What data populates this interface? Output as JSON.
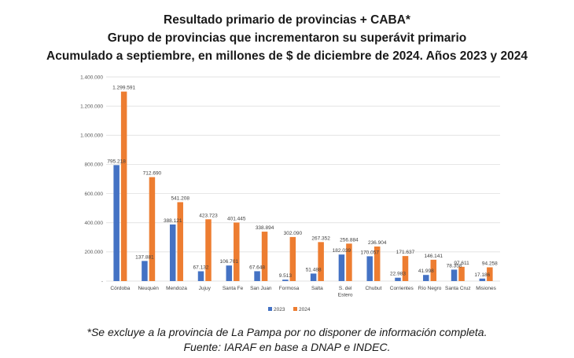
{
  "titles": {
    "line1": "Resultado primario de provincias + CABA*",
    "line2": "Grupo de provincias que incrementaron su superávit primario",
    "line3": "Acumulado a septiembre, en millones de $ de diciembre de 2024. Años 2023 y 2024"
  },
  "footer": {
    "note": "*Se excluye a la provincia de La Pampa por no disponer de información completa.",
    "source": "Fuente: IARAF en base a DNAP e INDEC."
  },
  "colors": {
    "s2023": "#4472C4",
    "s2024": "#ED7D31",
    "grid": "#d9d9d9"
  },
  "chart_data": {
    "type": "bar",
    "title": "Resultado primario de provincias + CABA*",
    "ylim": [
      0,
      1400000
    ],
    "yticks": [
      0,
      200000,
      400000,
      600000,
      800000,
      1000000,
      1200000,
      1400000
    ],
    "ytick_labels": [
      "-",
      "200.000",
      "400.000",
      "600.000",
      "800.000",
      "1.000.000",
      "1.200.000",
      "1.400.000"
    ],
    "categories": [
      "Córdoba",
      "Neuquén",
      "Mendoza",
      "Jujuy",
      "Santa Fe",
      "San Juan",
      "Formosa",
      "Salta",
      "S. del Estero",
      "Chubut",
      "Corrientes",
      "Río Negro",
      "Santa Cruz",
      "Misiones"
    ],
    "category_lines": [
      [
        "Córdoba"
      ],
      [
        "Neuquén"
      ],
      [
        "Mendoza"
      ],
      [
        "Jujuy"
      ],
      [
        "Santa Fe"
      ],
      [
        "San Juan"
      ],
      [
        "Formosa"
      ],
      [
        "Salta"
      ],
      [
        "S. del",
        "Estero"
      ],
      [
        "Chubut"
      ],
      [
        "Corrientes"
      ],
      [
        "Río Negro"
      ],
      [
        "Santa Cruz"
      ],
      [
        "Misiones"
      ]
    ],
    "series": [
      {
        "name": "2023",
        "values": [
          795218,
          137881,
          388121,
          67132,
          106701,
          67648,
          9513,
          51488,
          182039,
          170057,
          22983,
          41998,
          78358,
          17186
        ],
        "labels": [
          "795.218",
          "137.881",
          "388.121",
          "67.132",
          "106.701",
          "67.648",
          "9.513",
          "51.488",
          "182.039",
          "170.057",
          "22.983",
          "41.998",
          "78.358",
          "17.186"
        ]
      },
      {
        "name": "2024",
        "values": [
          1299591,
          712690,
          541208,
          423723,
          401445,
          338894,
          302090,
          267352,
          256884,
          236904,
          171637,
          146141,
          97611,
          94258
        ],
        "labels": [
          "1.299.591",
          "712.690",
          "541.208",
          "423.723",
          "401.445",
          "338.894",
          "302.090",
          "267.352",
          "256.884",
          "236.904",
          "171.637",
          "146.141",
          "97.611",
          "94.258"
        ]
      }
    ],
    "legend": {
      "position": "bottom",
      "entries": [
        "2023",
        "2024"
      ]
    },
    "grid": true
  }
}
